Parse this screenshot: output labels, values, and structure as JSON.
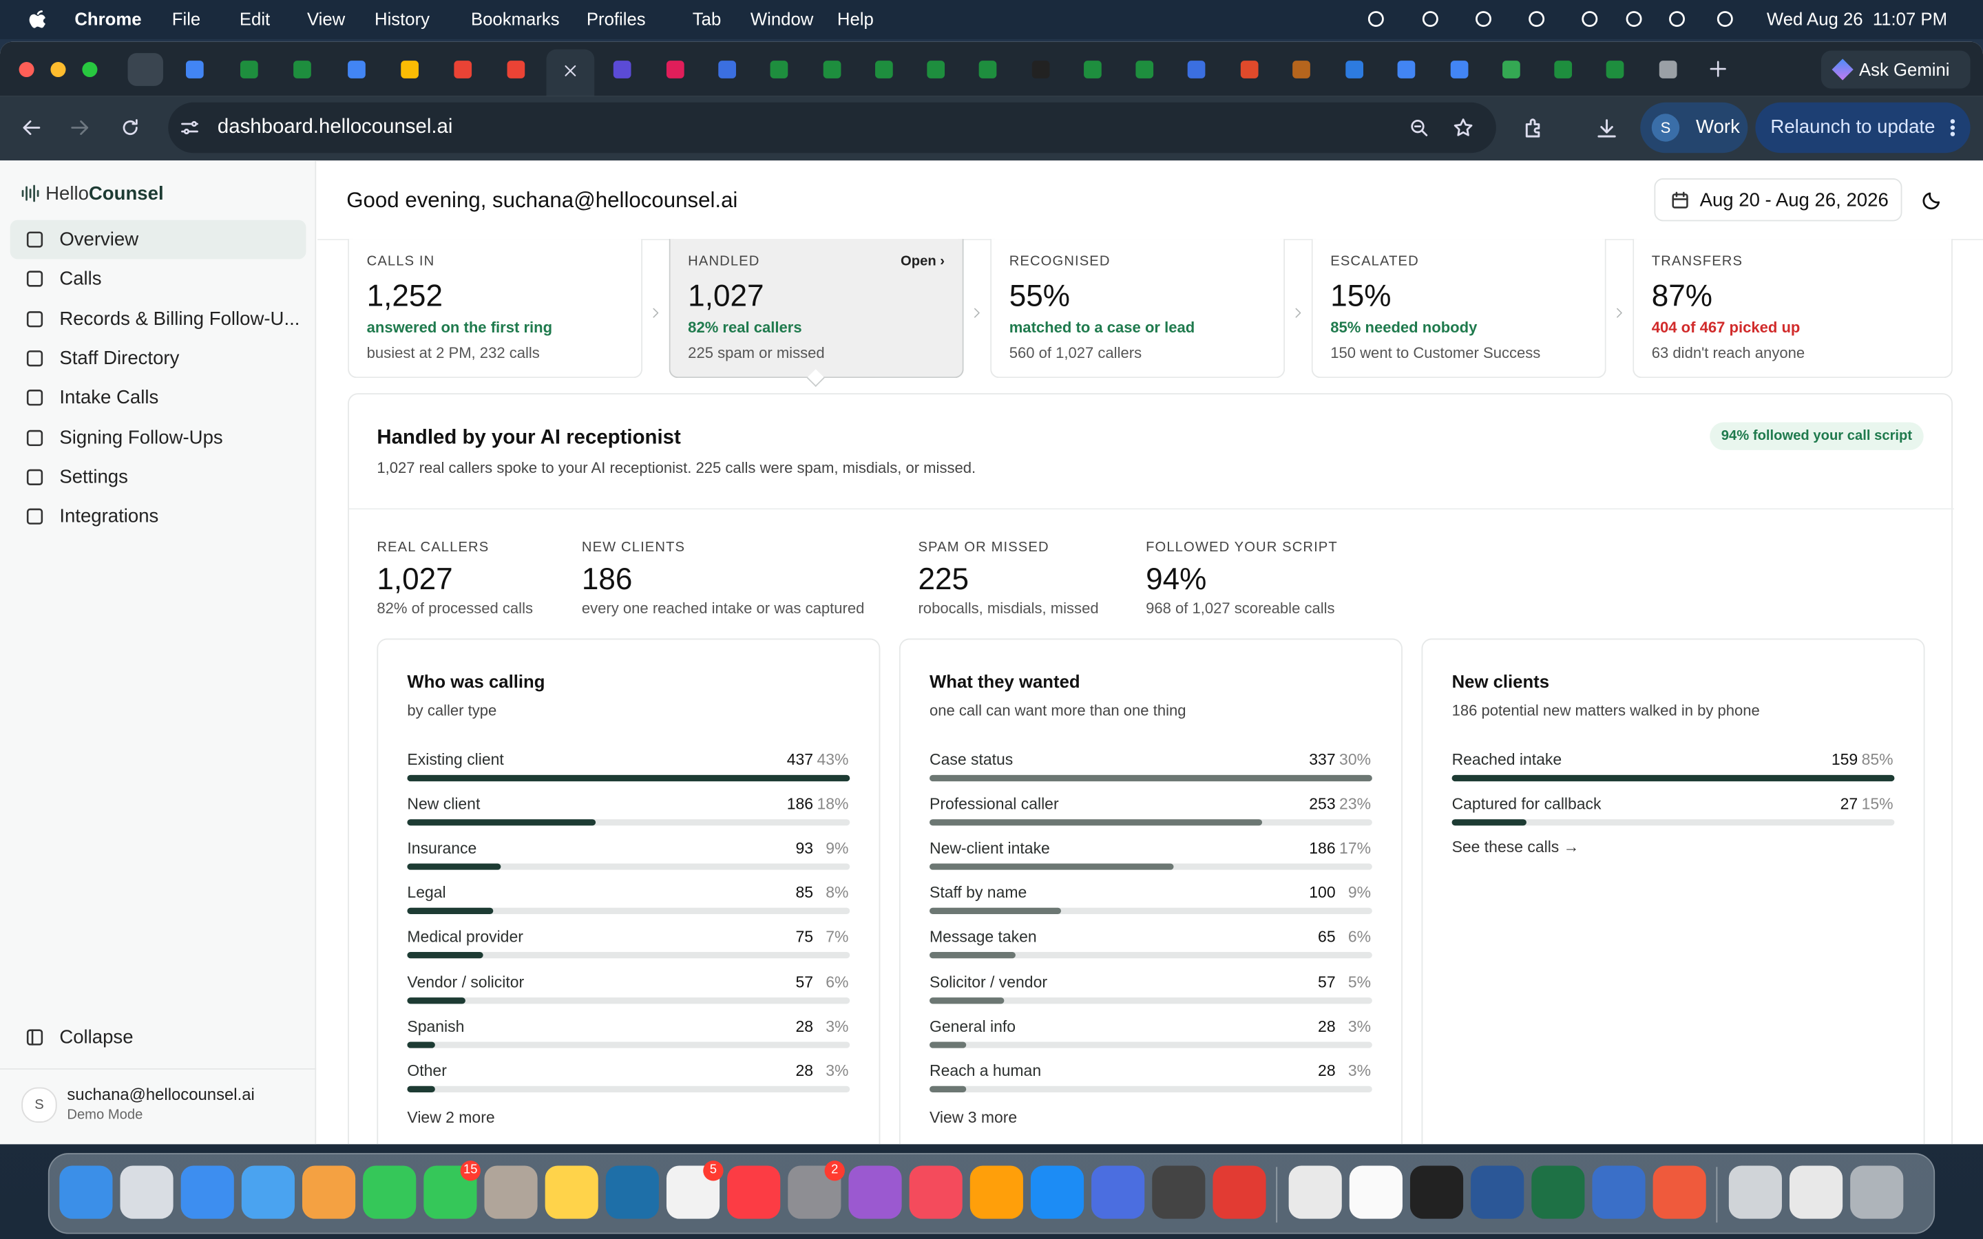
{
  "menubar": {
    "app": "Chrome",
    "menus": [
      "File",
      "Edit",
      "View",
      "History",
      "Bookmarks",
      "Profiles",
      "Tab",
      "Window",
      "Help"
    ],
    "clock": "Wed Aug 26  11:07 PM"
  },
  "browser": {
    "ask": "Ask Gemini",
    "url": "dashboard.hellocounsel.ai",
    "profile_initial": "S",
    "profile": "Work",
    "relaunch": "Relaunch to update"
  },
  "sidebar": {
    "brand_a": "Hello",
    "brand_b": "Counsel",
    "nav": [
      "Overview",
      "Calls",
      "Records & Billing Follow-U...",
      "Staff Directory",
      "Intake Calls",
      "Signing Follow-Ups",
      "Settings",
      "Integrations"
    ],
    "collapse": "Collapse",
    "user": {
      "initial": "S",
      "email": "suchana@hellocounsel.ai",
      "mode": "Demo Mode"
    }
  },
  "header": {
    "greeting": "Good evening, suchana@hellocounsel.ai",
    "date_range": "Aug 20 - Aug 26, 2026"
  },
  "kpis": [
    {
      "label": "CALLS IN",
      "value": "1,252",
      "highlight": "answered on the first ring",
      "highlight_color": "#1f7a4d",
      "note": "busiest at 2 PM, 232 calls"
    },
    {
      "label": "HANDLED",
      "open": "Open ›",
      "value": "1,027",
      "highlight": "82% real callers",
      "highlight_color": "#1f7a4d",
      "note": "225 spam or missed"
    },
    {
      "label": "RECOGNISED",
      "value": "55%",
      "highlight": "matched to a case or lead",
      "highlight_color": "#1f7a4d",
      "note": "560 of 1,027 callers"
    },
    {
      "label": "ESCALATED",
      "value": "15%",
      "highlight": "85% needed nobody",
      "highlight_color": "#1f7a4d",
      "note": "150 went to Customer Success"
    },
    {
      "label": "TRANSFERS",
      "value": "87%",
      "highlight": "404 of 467 picked up",
      "highlight_color": "#d12b2b",
      "note": "63 didn't reach anyone"
    }
  ],
  "panel": {
    "title": "Handled by your AI receptionist",
    "subtitle": "1,027 real callers spoke to your AI receptionist. 225 calls were spam, misdials, or missed.",
    "badge": "94% followed your call script",
    "stats": [
      {
        "label": "REAL CALLERS",
        "value": "1,027",
        "note": "82% of processed calls"
      },
      {
        "label": "NEW CLIENTS",
        "value": "186",
        "note": "every one reached intake or was captured"
      },
      {
        "label": "SPAM OR MISSED",
        "value": "225",
        "note": "robocalls, misdials, missed"
      },
      {
        "label": "FOLLOWED YOUR SCRIPT",
        "value": "94%",
        "note": "968 of 1,027 scoreable calls"
      }
    ],
    "cards": [
      {
        "title": "Who was calling",
        "subtitle": "by caller type",
        "bar_color": "#1d3b33",
        "rows": [
          {
            "label": "Existing client",
            "count": 437,
            "pct": "43%"
          },
          {
            "label": "New client",
            "count": 186,
            "pct": "18%"
          },
          {
            "label": "Insurance",
            "count": 93,
            "pct": "9%"
          },
          {
            "label": "Legal",
            "count": 85,
            "pct": "8%"
          },
          {
            "label": "Medical provider",
            "count": 75,
            "pct": "7%"
          },
          {
            "label": "Vendor / solicitor",
            "count": 57,
            "pct": "6%"
          },
          {
            "label": "Spanish",
            "count": 28,
            "pct": "3%"
          },
          {
            "label": "Other",
            "count": 28,
            "pct": "3%"
          }
        ],
        "more": "View 2 more"
      },
      {
        "title": "What they wanted",
        "subtitle": "one call can want more than one thing",
        "bar_color": "#6c7773",
        "rows": [
          {
            "label": "Case status",
            "count": 337,
            "pct": "30%"
          },
          {
            "label": "Professional caller",
            "count": 253,
            "pct": "23%"
          },
          {
            "label": "New-client intake",
            "count": 186,
            "pct": "17%"
          },
          {
            "label": "Staff by name",
            "count": 100,
            "pct": "9%"
          },
          {
            "label": "Message taken",
            "count": 65,
            "pct": "6%"
          },
          {
            "label": "Solicitor / vendor",
            "count": 57,
            "pct": "5%"
          },
          {
            "label": "General info",
            "count": 28,
            "pct": "3%"
          },
          {
            "label": "Reach a human",
            "count": 28,
            "pct": "3%"
          }
        ],
        "more": "View 3 more"
      },
      {
        "title": "New clients",
        "subtitle": "186 potential new matters walked in by phone",
        "bar_color": "#1d3b33",
        "rows": [
          {
            "label": "Reached intake",
            "count": 159,
            "pct": "85%"
          },
          {
            "label": "Captured for callback",
            "count": 27,
            "pct": "15%"
          }
        ],
        "more": "See these calls →"
      }
    ]
  },
  "dock": {
    "badges": [
      "15",
      "5",
      "2"
    ]
  }
}
